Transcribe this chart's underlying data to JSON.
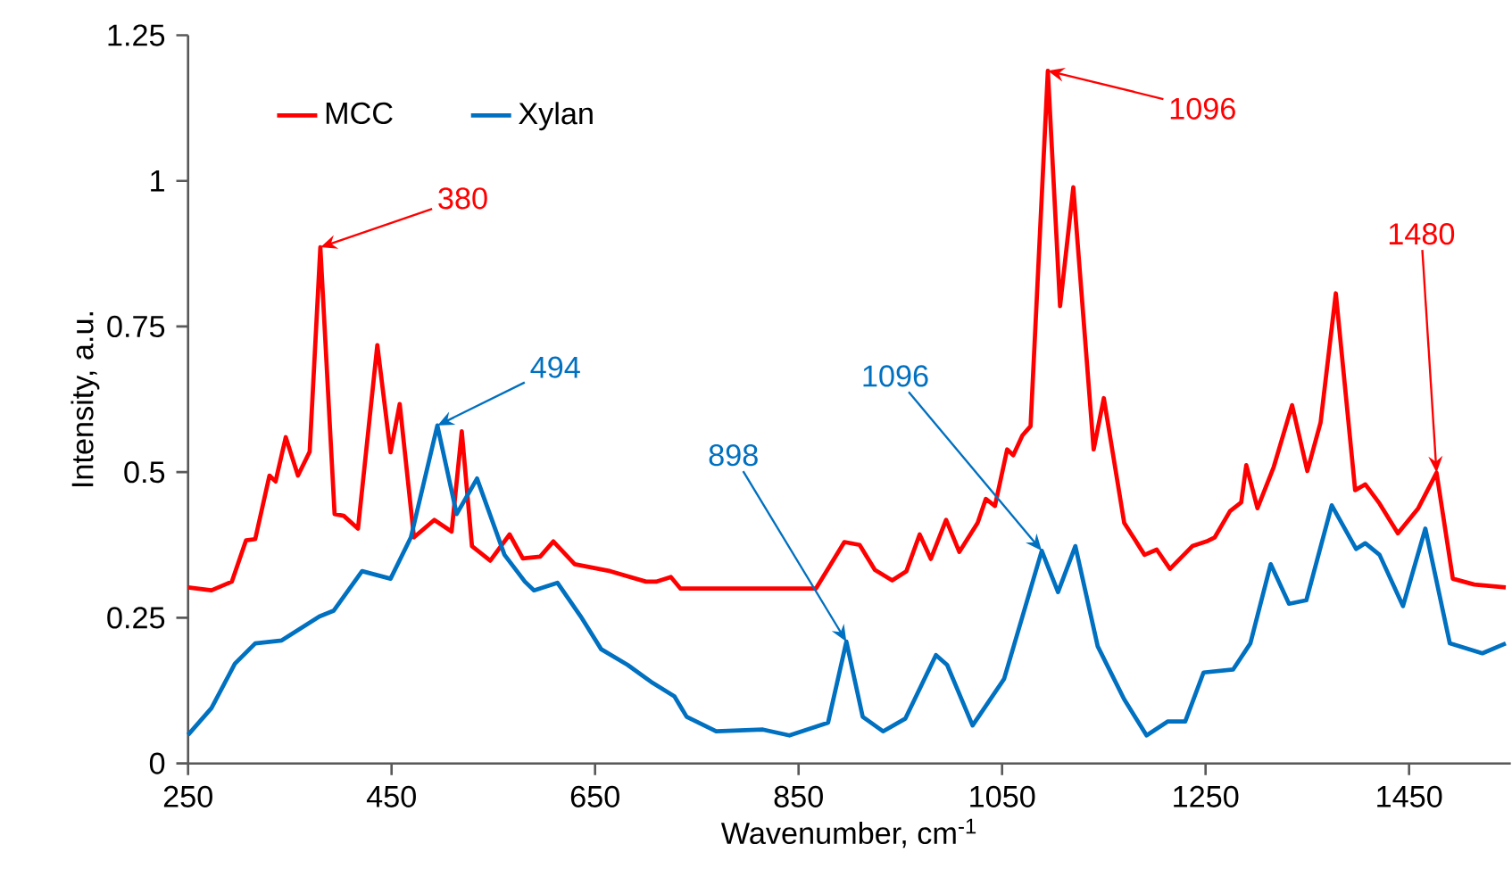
{
  "chart_data": {
    "type": "line",
    "xlabel": "Wavenumber, cm$^{-1}$",
    "ylabel": "Intensity, a.u.",
    "xlim": [
      250,
      1550
    ],
    "xticks": [
      250,
      450,
      650,
      850,
      1050,
      1250,
      1450
    ],
    "ylim": [
      0,
      1.25
    ],
    "yticks": [
      0,
      0.25,
      0.5,
      0.75,
      1,
      1.25
    ],
    "legend": "top left",
    "grid": false,
    "marker": "none",
    "line_style": "solid",
    "series": [
      {
        "name": "MCC",
        "color": "#ff0000",
        "x": [
          250,
          273,
          293,
          307,
          316,
          330,
          336,
          346,
          358,
          369.5,
          380,
          394,
          403,
          417,
          436,
          449,
          458,
          472,
          492,
          509,
          519,
          529,
          547,
          566,
          579,
          596,
          609,
          630,
          665,
          700,
          710,
          724.5,
          734,
          740,
          867,
          895,
          910,
          925,
          942,
          956,
          969,
          980,
          995,
          1008,
          1026,
          1034,
          1043,
          1055,
          1061,
          1070,
          1078,
          1095,
          1107,
          1120,
          1140,
          1150,
          1170,
          1190,
          1202,
          1215,
          1237,
          1251,
          1259,
          1274,
          1285,
          1290,
          1301,
          1317,
          1335,
          1350,
          1363,
          1378,
          1397,
          1407,
          1421,
          1439,
          1459,
          1477,
          1493,
          1514,
          1545
        ],
        "values": [
          0.302,
          0.297,
          0.312,
          0.383,
          0.385,
          0.494,
          0.484,
          0.56,
          0.494,
          0.535,
          0.886,
          0.428,
          0.425,
          0.403,
          0.718,
          0.534,
          0.617,
          0.388,
          0.418,
          0.398,
          0.57,
          0.373,
          0.348,
          0.393,
          0.352,
          0.355,
          0.381,
          0.342,
          0.33,
          0.312,
          0.312,
          0.32,
          0.3,
          0.3,
          0.3,
          0.38,
          0.375,
          0.332,
          0.314,
          0.33,
          0.393,
          0.351,
          0.418,
          0.363,
          0.413,
          0.454,
          0.442,
          0.539,
          0.529,
          0.563,
          0.579,
          1.189,
          0.785,
          0.989,
          0.539,
          0.627,
          0.413,
          0.358,
          0.367,
          0.334,
          0.373,
          0.381,
          0.388,
          0.433,
          0.448,
          0.512,
          0.438,
          0.509,
          0.615,
          0.502,
          0.585,
          0.807,
          0.469,
          0.479,
          0.446,
          0.395,
          0.438,
          0.499,
          0.317,
          0.307,
          0.302
        ]
      },
      {
        "name": "Xylan",
        "color": "#0070c0",
        "x": [
          250,
          273,
          296,
          316,
          342,
          379,
          393,
          421,
          449,
          469,
          495,
          514,
          534,
          561,
          581,
          590,
          613,
          636,
          656,
          682,
          705,
          728,
          740,
          769,
          815,
          841,
          879,
          897,
          913,
          933,
          955,
          985,
          996,
          1021,
          1052,
          1089,
          1105,
          1122,
          1144,
          1170,
          1192,
          1213,
          1230,
          1248,
          1277,
          1294,
          1314,
          1332,
          1349,
          1374,
          1398,
          1407,
          1421,
          1444,
          1466,
          1490,
          1522,
          1545
        ],
        "values": [
          0.049,
          0.095,
          0.171,
          0.206,
          0.211,
          0.252,
          0.262,
          0.33,
          0.317,
          0.388,
          0.58,
          0.428,
          0.489,
          0.358,
          0.312,
          0.297,
          0.31,
          0.252,
          0.196,
          0.169,
          0.14,
          0.115,
          0.08,
          0.055,
          0.058,
          0.048,
          0.07,
          0.209,
          0.08,
          0.055,
          0.077,
          0.186,
          0.169,
          0.065,
          0.145,
          0.365,
          0.294,
          0.373,
          0.201,
          0.11,
          0.048,
          0.072,
          0.072,
          0.156,
          0.161,
          0.206,
          0.342,
          0.274,
          0.28,
          0.443,
          0.368,
          0.378,
          0.358,
          0.27,
          0.403,
          0.206,
          0.189,
          0.206
        ]
      }
    ],
    "annotations": [
      {
        "text": "380",
        "x": 380,
        "y": 0.886
      },
      {
        "text": "494",
        "x": 495,
        "y": 0.58
      },
      {
        "text": "898",
        "x": 897,
        "y": 0.209
      },
      {
        "text": "1096",
        "x": 1089,
        "y": 0.365
      },
      {
        "text": "1096",
        "x": 1095,
        "y": 1.189
      },
      {
        "text": "1480",
        "x": 1477,
        "y": 0.499
      }
    ]
  }
}
